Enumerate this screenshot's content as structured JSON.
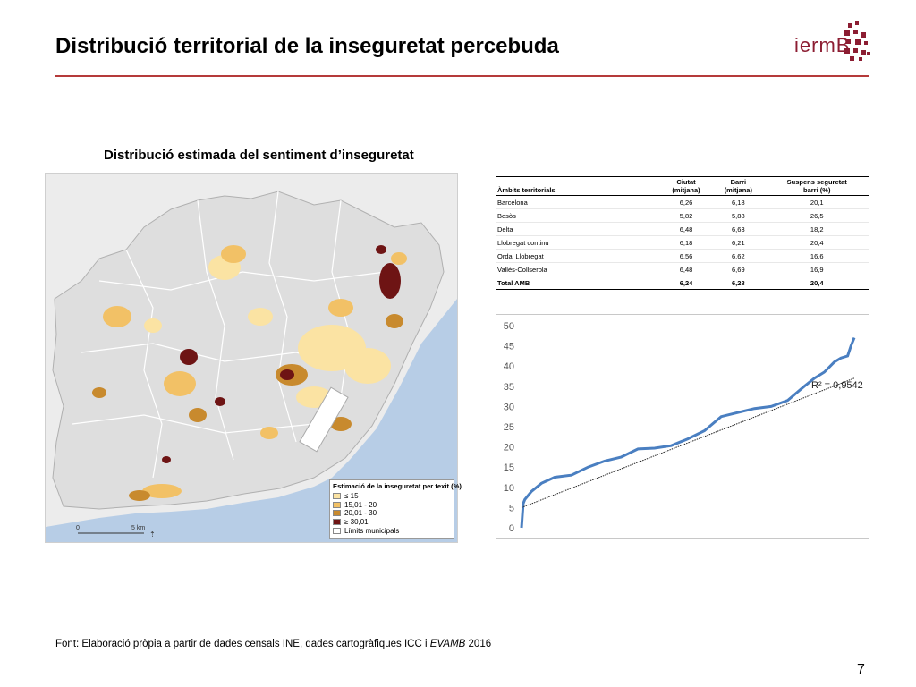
{
  "slide": {
    "title": "Distribució territorial de la inseguretat percebuda",
    "logo_text": "iermB",
    "page_number": "7",
    "source_prefix": "Font: Elaboració pròpia a partir de dades censals INE, dades cartogràfiques ICC i ",
    "source_italic": "EVAMB",
    "source_suffix": " 2016"
  },
  "map": {
    "heading": "Distribució estimada del sentiment d’inseguretat",
    "legend_title": "Estimació de la inseguretat per texit (%)",
    "legend_items": [
      {
        "label": "≤ 15",
        "color": "#fbe3a3"
      },
      {
        "label": "15,01 - 20",
        "color": "#f2c166"
      },
      {
        "label": "20,01 - 30",
        "color": "#c88a2e"
      },
      {
        "label": "≥ 30,01",
        "color": "#6e1414"
      },
      {
        "label": "Límits municipals",
        "color": "#ffffff"
      }
    ],
    "scale_zero": "0",
    "scale_label": "5 km",
    "sea_color": "#b7cde6",
    "land_color": "#dedede"
  },
  "table": {
    "headers": [
      "Àmbits territorials",
      "Ciutat\n(mitjana)",
      "Barri\n(mitjana)",
      "Suspens seguretat\nbarri (%)"
    ],
    "rows": [
      [
        "Barcelona",
        "6,26",
        "6,18",
        "20,1"
      ],
      [
        "Besòs",
        "5,82",
        "5,88",
        "26,5"
      ],
      [
        "Delta",
        "6,48",
        "6,63",
        "18,2"
      ],
      [
        "Llobregat continu",
        "6,18",
        "6,21",
        "20,4"
      ],
      [
        "Ordal Llobregat",
        "6,56",
        "6,62",
        "16,6"
      ],
      [
        "Vallès-Collserola",
        "6,48",
        "6,69",
        "16,9"
      ]
    ],
    "total": [
      "Total AMB",
      "6,24",
      "6,28",
      "20,4"
    ]
  },
  "chart_data": {
    "type": "line",
    "title": "",
    "xlabel": "",
    "ylabel": "",
    "ylim": [
      0,
      50
    ],
    "yticks": [
      0,
      5,
      10,
      15,
      20,
      25,
      30,
      35,
      40,
      45,
      50
    ],
    "grid": false,
    "annotation": "R² = 0,9542",
    "series": [
      {
        "role": "observed",
        "color": "#4a7fc1",
        "x": [
          0,
          0.5,
          1,
          3,
          6,
          10,
          15,
          20,
          25,
          30,
          35,
          40,
          45,
          50,
          55,
          60,
          65,
          70,
          75,
          80,
          85,
          88,
          91,
          94,
          96,
          98,
          99,
          100
        ],
        "values": [
          0,
          6,
          7,
          9,
          11,
          12.5,
          13,
          15,
          16.5,
          17.5,
          19.5,
          19.7,
          20.3,
          22,
          24,
          27.5,
          28.5,
          29.5,
          30,
          31.5,
          35,
          37,
          38.5,
          41,
          42,
          42.5,
          45,
          47
        ]
      },
      {
        "role": "linear trend",
        "color": "#222222",
        "x": [
          0,
          100
        ],
        "values": [
          5,
          37
        ]
      }
    ]
  }
}
